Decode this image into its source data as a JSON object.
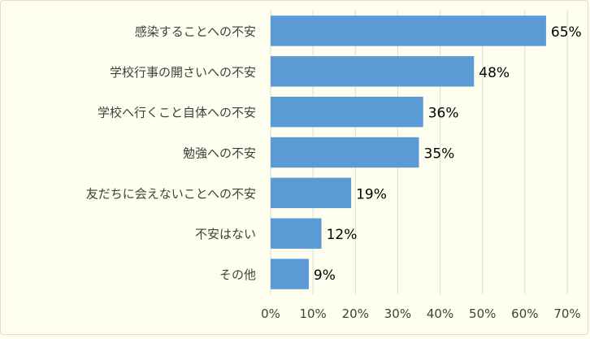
{
  "chart_data": {
    "type": "bar",
    "orientation": "horizontal",
    "title": "",
    "xlabel": "",
    "ylabel": "",
    "categories": [
      "感染することへの不安",
      "学校行事の開さいへの不安",
      "学校へ行くこと自体への不安",
      "勉強への不安",
      "友だちに会えないことへの不安",
      "不安はない",
      "その他"
    ],
    "values": [
      65,
      48,
      36,
      35,
      19,
      12,
      9
    ],
    "data_labels": [
      "65%",
      "48%",
      "36%",
      "35%",
      "19%",
      "12%",
      "9%"
    ],
    "xlim": [
      0,
      70
    ],
    "xticks": [
      0,
      10,
      20,
      30,
      40,
      50,
      60,
      70
    ],
    "xtick_labels": [
      "0%",
      "10%",
      "20%",
      "30%",
      "40%",
      "50%",
      "60%",
      "70%"
    ],
    "grid": "vertical",
    "legend": "none",
    "colors": {
      "bar": "#5b9bd5",
      "grid": "#d9d9d9",
      "text": "#404040",
      "data_label": "#000000",
      "background": "#fffff0"
    }
  }
}
